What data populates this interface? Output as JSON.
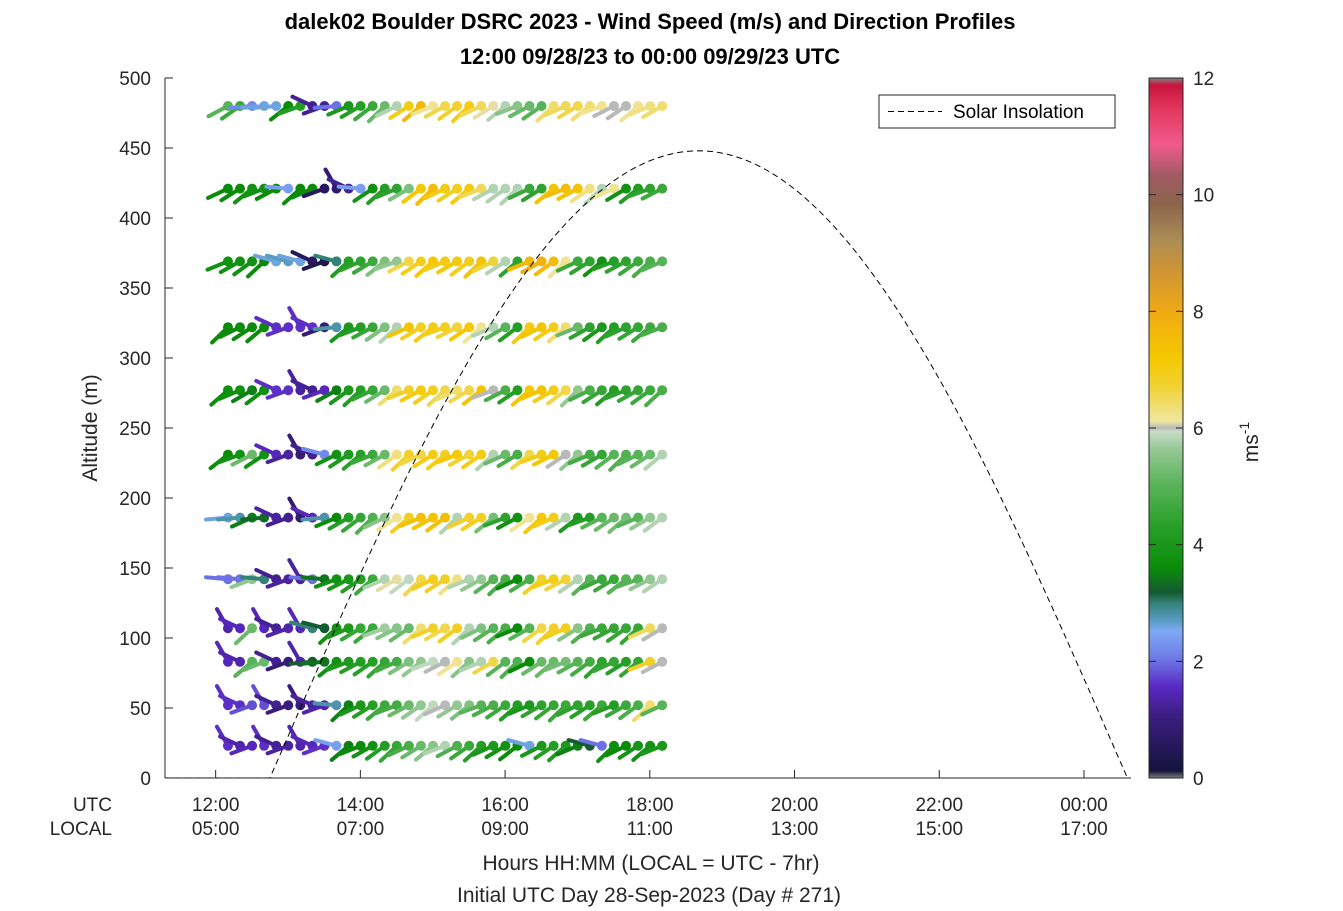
{
  "chart_data": {
    "type": "scatter",
    "title": "dalek02 Boulder DSRC 2023 - Wind Speed (m/s) and Direction Profiles",
    "subtitle": "12:00 09/28/23 to 00:00 09/29/23  UTC",
    "ylabel": "Altitude (m)",
    "ylim": [
      0,
      500
    ],
    "yticks": [
      "0",
      "50",
      "100",
      "150",
      "200",
      "250",
      "300",
      "350",
      "400",
      "450",
      "500"
    ],
    "x_row_labels": [
      "UTC",
      "LOCAL"
    ],
    "xticks_utc": [
      "12:00",
      "14:00",
      "16:00",
      "18:00",
      "20:00",
      "22:00",
      "00:00"
    ],
    "xticks_local": [
      "05:00",
      "07:00",
      "09:00",
      "11:00",
      "13:00",
      "15:00",
      "17:00"
    ],
    "xticks_hours": [
      12,
      14,
      16,
      18,
      20,
      22,
      24
    ],
    "xlim_hours": [
      11.3,
      24.65
    ],
    "xlabel": "Hours HH:MM  (LOCAL = UTC - 7hr)",
    "xlabel2": "Initial UTC Day 28-Sep-2023 (Day # 271)",
    "legend": {
      "label": "Solar Insolation",
      "position": "top-right"
    },
    "colorbar": {
      "min": 0,
      "max": 12,
      "ticks": [
        "0",
        "2",
        "4",
        "6",
        "8",
        "10",
        "12"
      ],
      "unit_label": "ms",
      "unit_exponent": "-1"
    },
    "solar_insolation": {
      "rise_hour": 12.75,
      "set_hour": 24.6,
      "peak_hour": 18.95,
      "peak_altitude": 448
    },
    "altitudes": [
      23,
      52,
      83,
      107,
      142,
      186,
      231,
      277,
      322,
      369,
      421,
      480
    ],
    "times_start_hour": 12.17,
    "times_step_hour": 0.1667,
    "wind_speed": [
      [
        1.6,
        1.4,
        1.5,
        1.6,
        1.2,
        1.3,
        1.4,
        1.5,
        1.6,
        2.4,
        3.5,
        3.6,
        3.8,
        4.2,
        4.5,
        4.8,
        5.2,
        5.5,
        5.8,
        4.9,
        4.6,
        4.2,
        4.0,
        3.8,
        3.6,
        2.6,
        4.0,
        4.2,
        4.1,
        3.5,
        3.2,
        2.0,
        3.7,
        3.6,
        3.9,
        3.8,
        4.0
      ],
      [
        1.6,
        1.6,
        1.8,
        1.8,
        1.2,
        1.0,
        1.0,
        1.3,
        1.4,
        2.8,
        3.5,
        4.0,
        4.3,
        4.6,
        4.7,
        5.2,
        5.6,
        5.9,
        6.0,
        5.6,
        5.4,
        5.0,
        4.8,
        4.6,
        4.2,
        4.0,
        4.4,
        4.5,
        4.6,
        4.4,
        4.3,
        4.6,
        4.2,
        4.6,
        4.8,
        6.4,
        5.0
      ],
      [
        1.5,
        1.4,
        5.0,
        5.2,
        1.2,
        0.9,
        1.4,
        3.2,
        3.4,
        3.8,
        4.1,
        4.2,
        4.3,
        4.5,
        4.7,
        5.4,
        5.6,
        5.9,
        6.0,
        6.2,
        5.5,
        5.8,
        6.6,
        5.0,
        4.9,
        3.6,
        5.2,
        5.2,
        5.3,
        5.0,
        4.7,
        4.4,
        4.5,
        4.3,
        4.5,
        6.8,
        6.0
      ],
      [
        1.4,
        1.5,
        5.2,
        1.5,
        1.2,
        1.4,
        1.5,
        3.0,
        3.2,
        3.8,
        4.1,
        4.5,
        4.6,
        5.7,
        5.5,
        5.2,
        6.4,
        6.8,
        6.6,
        6.9,
        5.8,
        5.4,
        5.0,
        4.8,
        3.6,
        5.0,
        6.6,
        6.8,
        6.9,
        5.5,
        4.9,
        4.6,
        4.5,
        4.5,
        4.5,
        6.5,
        6.0
      ],
      [
        2.0,
        2.0,
        5.6,
        3.0,
        1.2,
        1.3,
        1.3,
        2.0,
        3.4,
        3.8,
        4.0,
        4.2,
        4.6,
        5.8,
        6.1,
        5.9,
        6.6,
        6.9,
        6.8,
        6.3,
        5.8,
        5.6,
        5.0,
        4.8,
        3.6,
        4.8,
        6.8,
        7.0,
        6.7,
        5.8,
        5.0,
        4.6,
        4.6,
        5.0,
        5.0,
        5.6,
        5.8
      ],
      [
        2.6,
        2.8,
        3.5,
        3.3,
        1.3,
        1.2,
        0.8,
        1.5,
        2.8,
        3.6,
        4.2,
        4.5,
        4.9,
        5.5,
        6.2,
        6.9,
        7.4,
        7.3,
        7.4,
        5.8,
        6.8,
        6.9,
        5.3,
        4.4,
        3.8,
        6.2,
        7.2,
        7.0,
        5.8,
        4.0,
        4.2,
        5.0,
        5.2,
        5.3,
        5.0,
        5.6,
        5.8
      ],
      [
        3.6,
        3.8,
        5.2,
        3.8,
        1.5,
        1.3,
        0.9,
        1.2,
        2.2,
        3.8,
        4.1,
        4.3,
        4.6,
        5.2,
        6.3,
        6.8,
        6.6,
        7.0,
        6.9,
        7.2,
        6.7,
        7.0,
        5.8,
        5.2,
        4.8,
        6.6,
        7.0,
        7.2,
        6.0,
        5.6,
        4.7,
        4.5,
        5.0,
        4.9,
        5.0,
        5.2,
        5.8
      ],
      [
        3.7,
        3.7,
        3.5,
        3.7,
        1.6,
        1.6,
        1.3,
        1.2,
        1.5,
        3.5,
        4.0,
        4.2,
        4.5,
        5.2,
        6.4,
        6.8,
        7.1,
        6.9,
        6.6,
        6.4,
        6.6,
        7.3,
        6.0,
        4.8,
        4.2,
        7.2,
        7.3,
        7.0,
        6.6,
        5.6,
        4.8,
        4.5,
        4.2,
        4.4,
        4.5,
        4.6,
        4.8
      ],
      [
        3.6,
        3.6,
        3.6,
        3.6,
        1.6,
        1.6,
        1.6,
        1.6,
        0.9,
        2.8,
        4.0,
        4.2,
        4.5,
        5.4,
        5.8,
        7.3,
        6.9,
        7.0,
        6.9,
        6.7,
        7.2,
        6.2,
        5.8,
        5.0,
        4.2,
        7.1,
        7.3,
        7.0,
        6.4,
        5.2,
        4.4,
        4.0,
        4.2,
        4.4,
        4.5,
        4.6,
        4.8
      ],
      [
        3.8,
        3.8,
        3.8,
        3.6,
        2.6,
        2.7,
        2.6,
        0.6,
        0.4,
        3.0,
        4.2,
        4.4,
        4.6,
        5.4,
        5.6,
        6.6,
        6.9,
        7.2,
        7.0,
        7.1,
        6.9,
        7.3,
        6.7,
        5.8,
        4.4,
        7.6,
        7.8,
        7.5,
        6.2,
        4.6,
        4.4,
        3.8,
        4.2,
        4.4,
        4.6,
        4.8,
        5.0
      ],
      [
        3.6,
        3.6,
        3.8,
        3.8,
        3.6,
        2.4,
        3.6,
        3.6,
        0.6,
        0.8,
        1.2,
        2.4,
        3.8,
        4.2,
        4.4,
        5.4,
        7.2,
        7.5,
        7.0,
        6.9,
        7.1,
        6.5,
        5.8,
        5.8,
        5.8,
        4.6,
        4.4,
        7.3,
        7.5,
        7.3,
        6.3,
        5.8,
        6.2,
        3.8,
        4.2,
        4.4,
        4.6
      ],
      [
        5.0,
        4.6,
        2.2,
        2.6,
        2.6,
        3.6,
        4.2,
        1.2,
        1.2,
        2.0,
        4.0,
        4.3,
        4.6,
        5.2,
        5.8,
        7.0,
        7.6,
        6.2,
        6.6,
        6.8,
        7.0,
        6.5,
        6.1,
        5.8,
        5.5,
        5.2,
        5.0,
        6.4,
        6.5,
        6.6,
        6.4,
        6.2,
        6.0,
        6.0,
        6.2,
        6.3,
        6.4
      ]
    ]
  }
}
